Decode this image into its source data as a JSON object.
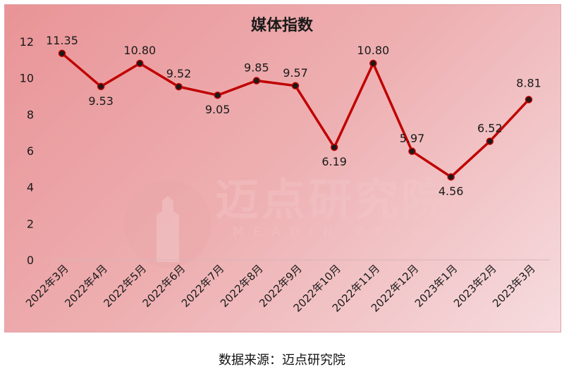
{
  "chart_data": {
    "type": "line",
    "title": "媒体指数",
    "categories": [
      "2022年3月",
      "2022年4月",
      "2022年5月",
      "2022年6月",
      "2022年7月",
      "2022年8月",
      "2022年9月",
      "2022年10月",
      "2022年11月",
      "2022年12月",
      "2023年1月",
      "2023年2月",
      "2023年3月"
    ],
    "series": [
      {
        "values": [
          11.35,
          9.53,
          10.8,
          9.52,
          9.05,
          9.85,
          9.57,
          6.19,
          10.8,
          5.97,
          4.56,
          6.52,
          8.81
        ]
      }
    ],
    "data_labels": [
      "11.35",
      "9.53",
      "10.80",
      "9.52",
      "9.05",
      "9.85",
      "9.57",
      "6.19",
      "10.80",
      "5.97",
      "4.56",
      "6.52",
      "8.81"
    ],
    "y_ticks": [
      "0",
      "2",
      "4",
      "6",
      "8",
      "10",
      "12"
    ],
    "ylim": [
      0,
      12
    ],
    "grid": false,
    "legend": "none",
    "line_color": "#c00000",
    "marker_color": "#1a1a1a"
  },
  "watermark": {
    "logo_name": "迈点研究院",
    "logo_sub": "MEADIN ACADEMY"
  },
  "source_note": "数据来源：迈点研究院"
}
